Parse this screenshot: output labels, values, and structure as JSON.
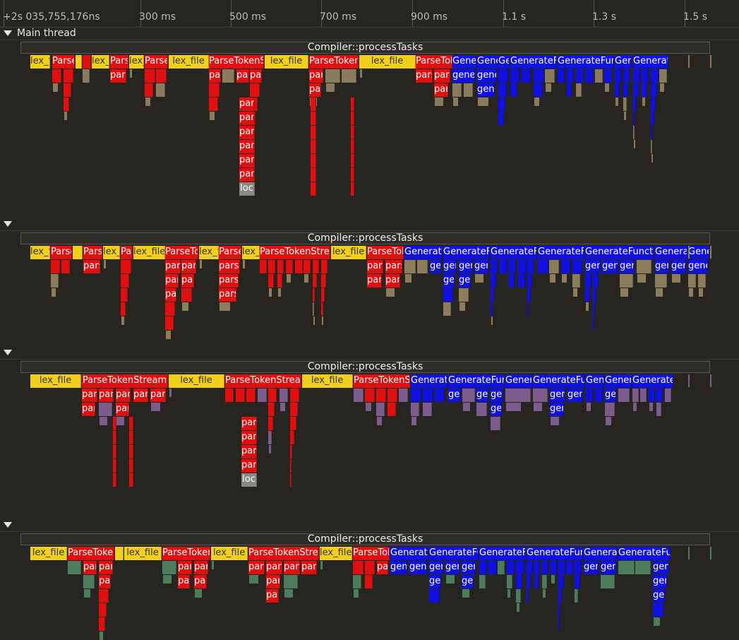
{
  "timeline": {
    "ticks": [
      {
        "label": "+2s 035,755,176ns"
      },
      {
        "label": "300 ms"
      },
      {
        "label": "500 ms"
      },
      {
        "label": "700 ms"
      },
      {
        "label": "900 ms"
      },
      {
        "label": "1.1 s"
      },
      {
        "label": "1.3 s"
      },
      {
        "label": "1.5 s"
      }
    ]
  },
  "sections": [
    {
      "title": "Main thread",
      "root_label": "Compiler::processTasks"
    },
    {
      "title": "",
      "root_label": "Compiler::processTasks"
    },
    {
      "title": "",
      "root_label": "Compiler::processTasks"
    },
    {
      "title": "",
      "root_label": "Compiler::processTasks"
    }
  ],
  "colors": {
    "lex": "#f1cf1a",
    "parse": "#e01010",
    "generate": "#1010e0",
    "section_tints": [
      "#8a7a5e",
      "#8c7d5c",
      "#7c5c8c",
      "#4c7c5c"
    ],
    "background": "#26251f"
  },
  "labels": {
    "lex_file": "lex_file",
    "ParseTokenStream": "ParseTokenStream",
    "parseBlock": "parseBlock",
    "GenerateFunction": "GenerateFunction",
    "GenerateBody": "generateBody",
    "generate": "generate",
    "loc": "loc"
  }
}
